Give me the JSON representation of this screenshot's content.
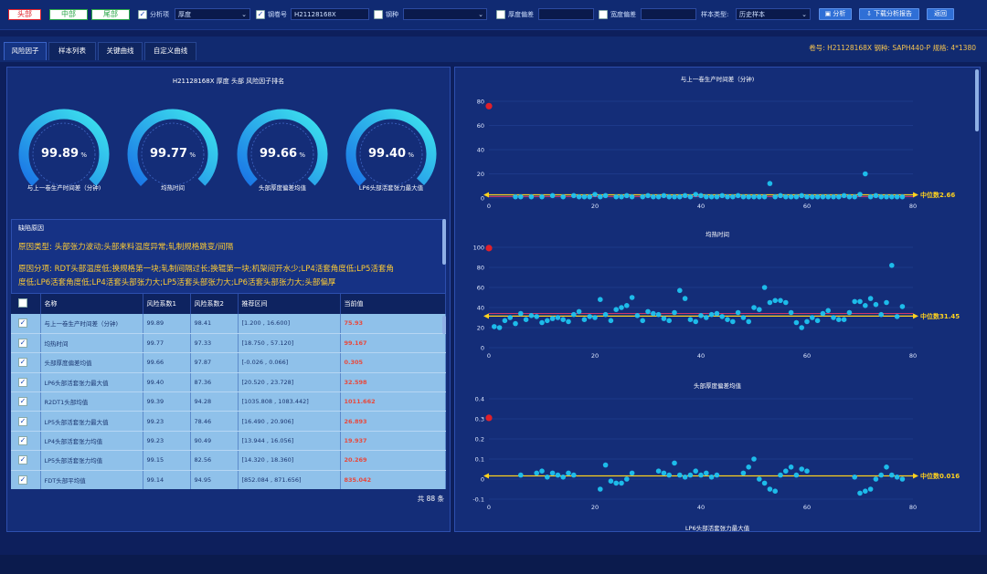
{
  "topbar": {
    "seg_head": "头部",
    "seg_mid": "中部",
    "seg_tail": "尾部",
    "analysis_item_label": "分析项",
    "analysis_item_value": "厚度",
    "coil_no_label": "钢卷号",
    "coil_no_value": "H21128168X",
    "steel_grade_label": "钢种",
    "steel_grade_value": "",
    "thickness_dev_label": "厚度偏差",
    "thickness_dev_value": "",
    "width_dev_label": "宽度偏差",
    "width_dev_value": "",
    "sample_type_label": "样本类型:",
    "sample_type_value": "历史样本",
    "analyze_btn": "分析",
    "download_btn": "下载分析报告",
    "back_btn": "返回"
  },
  "tabs": [
    "风险因子",
    "样本列表",
    "关键曲线",
    "自定义曲线"
  ],
  "coil_info": "卷号: H21128168X   钢种: SAPH440-P   规格: 4*1380",
  "left": {
    "title": "H21128168X 厚度 头部 风险因子排名",
    "gauges": [
      {
        "value": "99.89",
        "unit": "%",
        "label": "与上一卷生产时间差（分钟)",
        "pct": 99.89
      },
      {
        "value": "99.77",
        "unit": "%",
        "label": "均热时间",
        "pct": 99.77
      },
      {
        "value": "99.66",
        "unit": "%",
        "label": "头部厚度偏差均值",
        "pct": 99.66
      },
      {
        "value": "99.40",
        "unit": "%",
        "label": "LP6头部活套张力最大值",
        "pct": 99.4
      }
    ],
    "reason_header": "缺陷原因",
    "reason_type": "原因类型:  头部张力波动;头部来料温度异常;轧制规格跳变/间隔",
    "reason_detail_1": "原因分项:  RDT头部温度低;换规格第一块;轧制间隔过长;换辊第一块;机架间开水少;LP4活套角度低;LP5活套角",
    "reason_detail_2": "度低;LP6活套角度低;LP4活套头部张力大;LP5活套头部张力大;LP6活套头部张力大;头部偏厚",
    "table_headers": [
      "名称",
      "风险系数1",
      "风险系数2",
      "推荐区间",
      "当前值"
    ],
    "rows": [
      [
        "与上一卷生产时间差（分钟)",
        "99.89",
        "98.41",
        "[1.200 , 16.600]",
        "75.93"
      ],
      [
        "均热时间",
        "99.77",
        "97.33",
        "[18.750 , 57.120]",
        "99.167"
      ],
      [
        "头部厚度偏差均值",
        "99.66",
        "97.87",
        "[-0.026 , 0.066]",
        "0.305"
      ],
      [
        "LP6头部活套张力最大值",
        "99.40",
        "87.36",
        "[20.520 , 23.728]",
        "32.598"
      ],
      [
        "R2DT1头部均值",
        "99.39",
        "94.28",
        "[1035.808 , 1083.442]",
        "1011.662"
      ],
      [
        "LP5头部活套张力最大值",
        "99.23",
        "78.46",
        "[16.490 , 20.906]",
        "26.893"
      ],
      [
        "LP4头部活套张力均值",
        "99.23",
        "90.49",
        "[13.944 , 16.056]",
        "19.937"
      ],
      [
        "LP5头部活套张力均值",
        "99.15",
        "82.56",
        "[14.320 , 18.360]",
        "20.269"
      ],
      [
        "FDT头部平均值",
        "99.14",
        "94.95",
        "[852.084 , 871.656]",
        "835.042"
      ]
    ],
    "total": "共 88 条"
  },
  "chart_data": [
    {
      "type": "scatter",
      "title": "与上一卷生产时间差（分钟)",
      "xlim": [
        0,
        80
      ],
      "ylim": [
        0,
        80
      ],
      "xticks": [
        "0",
        "20",
        "40",
        "60",
        "80"
      ],
      "yticks": [
        "0",
        "20",
        "40",
        "60",
        "80"
      ],
      "current": {
        "x": 0,
        "y": 76
      },
      "median_label": "中位数2.66",
      "median": 2.66,
      "limit_lines": [
        1.2,
        2.66
      ],
      "x": [
        5,
        6,
        8,
        10,
        12,
        14,
        16,
        17,
        18,
        19,
        20,
        21,
        22,
        24,
        25,
        26,
        27,
        29,
        30,
        31,
        32,
        33,
        34,
        35,
        36,
        37,
        38,
        39,
        40,
        41,
        42,
        43,
        44,
        45,
        46,
        47,
        48,
        49,
        50,
        51,
        52,
        53,
        54,
        55,
        56,
        57,
        58,
        59,
        60,
        61,
        62,
        63,
        64,
        65,
        66,
        67,
        68,
        69,
        70,
        71,
        72,
        73,
        74,
        75,
        76,
        77,
        78
      ],
      "y": [
        1,
        1,
        1,
        1,
        2,
        1,
        2,
        1,
        1,
        1,
        3,
        1,
        2,
        1,
        1,
        2,
        1,
        1,
        2,
        1,
        1,
        2,
        1,
        1,
        1,
        2,
        1,
        3,
        2,
        1,
        1,
        1,
        2,
        1,
        1,
        2,
        1,
        1,
        1,
        1,
        1,
        12,
        1,
        2,
        1,
        1,
        1,
        2,
        1,
        1,
        1,
        1,
        1,
        1,
        1,
        2,
        1,
        1,
        3,
        20,
        1,
        2,
        1,
        1,
        1,
        1,
        1
      ]
    },
    {
      "type": "scatter",
      "title": "均热时间",
      "xlim": [
        0,
        80
      ],
      "ylim": [
        0,
        100
      ],
      "xticks": [
        "0",
        "20",
        "40",
        "60",
        "80"
      ],
      "yticks": [
        "0",
        "20",
        "40",
        "60",
        "80",
        "100"
      ],
      "current": {
        "x": 0,
        "y": 99.2
      },
      "median_label": "中位数31.45",
      "median": 31.45,
      "limit_lines": [
        31.45,
        34
      ],
      "x": [
        1,
        2,
        3,
        4,
        5,
        6,
        7,
        8,
        9,
        10,
        11,
        12,
        13,
        14,
        15,
        16,
        17,
        18,
        19,
        20,
        21,
        22,
        23,
        24,
        25,
        26,
        27,
        28,
        29,
        30,
        31,
        32,
        33,
        34,
        35,
        36,
        37,
        38,
        39,
        40,
        41,
        42,
        43,
        44,
        45,
        46,
        47,
        48,
        49,
        50,
        51,
        52,
        53,
        54,
        55,
        56,
        57,
        58,
        59,
        60,
        61,
        62,
        63,
        64,
        65,
        66,
        67,
        68,
        69,
        70,
        71,
        72,
        73,
        74,
        75,
        76,
        77,
        78
      ],
      "y": [
        21,
        20,
        27,
        30,
        24,
        34,
        28,
        32,
        31,
        25,
        27,
        29,
        30,
        28,
        26,
        33,
        36,
        28,
        31,
        30,
        48,
        33,
        27,
        38,
        40,
        42,
        50,
        32,
        27,
        36,
        34,
        33,
        29,
        27,
        35,
        57,
        49,
        28,
        26,
        32,
        30,
        33,
        34,
        31,
        28,
        26,
        35,
        30,
        26,
        40,
        38,
        60,
        45,
        47,
        47,
        45,
        35,
        25,
        20,
        26,
        30,
        27,
        34,
        37,
        30,
        28,
        28,
        35,
        46,
        46,
        42,
        49,
        43,
        33,
        45,
        82,
        31,
        41
      ]
    },
    {
      "type": "scatter",
      "title": "头部厚度偏差均值",
      "xlim": [
        0,
        80
      ],
      "ylim": [
        -0.1,
        0.4
      ],
      "xticks": [
        "0",
        "20",
        "40",
        "60",
        "80"
      ],
      "yticks": [
        "-0.1",
        "0",
        "0.1",
        "0.2",
        "0.3",
        "0.4"
      ],
      "current": {
        "x": 0,
        "y": 0.305
      },
      "median_label": "中位数0.016",
      "median": 0.016,
      "limit_lines": [
        0.016
      ],
      "x": [
        6,
        9,
        10,
        11,
        12,
        13,
        14,
        15,
        16,
        21,
        22,
        23,
        24,
        25,
        26,
        27,
        32,
        33,
        34,
        35,
        36,
        37,
        38,
        39,
        40,
        41,
        42,
        43,
        48,
        49,
        50,
        51,
        52,
        53,
        54,
        55,
        56,
        57,
        58,
        59,
        60,
        69,
        70,
        71,
        72,
        73,
        74,
        75,
        76,
        77,
        78
      ],
      "y": [
        0.02,
        0.03,
        0.04,
        0.01,
        0.03,
        0.02,
        0.01,
        0.03,
        0.02,
        -0.05,
        0.07,
        -0.01,
        -0.02,
        -0.02,
        0.0,
        0.03,
        0.04,
        0.03,
        0.02,
        0.08,
        0.02,
        0.01,
        0.02,
        0.04,
        0.02,
        0.03,
        0.01,
        0.02,
        0.03,
        0.06,
        0.1,
        0.0,
        -0.02,
        -0.05,
        -0.06,
        0.02,
        0.04,
        0.06,
        0.02,
        0.05,
        0.04,
        0.01,
        -0.07,
        -0.06,
        -0.05,
        0.0,
        0.02,
        0.06,
        0.02,
        0.01,
        0.0
      ]
    }
  ],
  "chart4_title": "LP6头部活套张力最大值",
  "colors": {
    "point": "#1ec3f0",
    "current": "#e0202a",
    "median": "#ffd21e",
    "limit": "#e83a6a"
  }
}
